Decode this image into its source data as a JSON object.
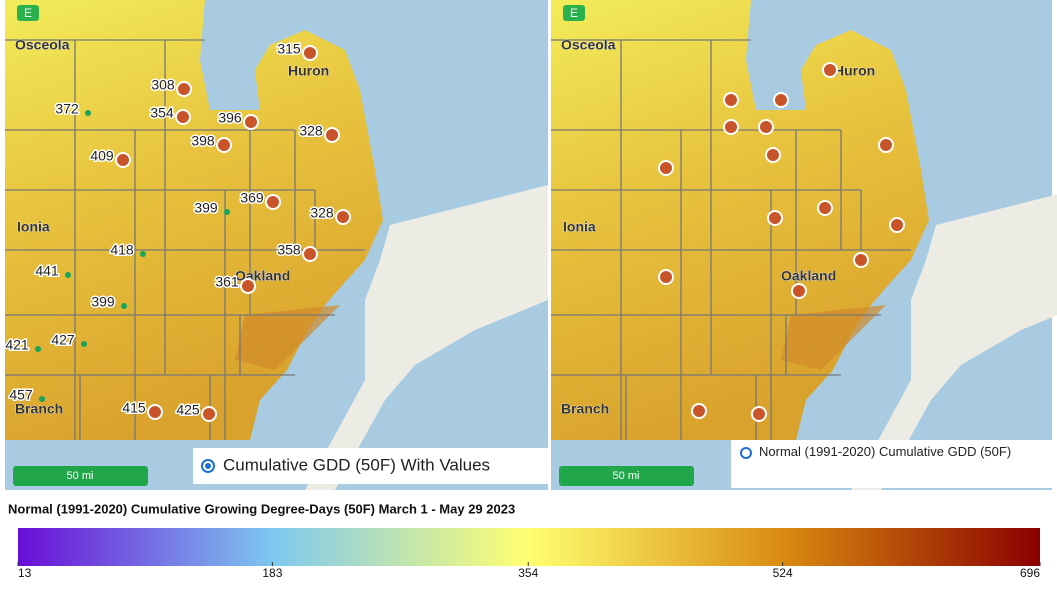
{
  "left_map": {
    "layer_button": "E",
    "county_labels": [
      "Osceola",
      "Huron",
      "Ionia",
      "Oakland",
      "Branch"
    ],
    "station_values": [
      315,
      308,
      372,
      354,
      396,
      328,
      409,
      398,
      369,
      399,
      328,
      358,
      418,
      441,
      361,
      399,
      427,
      421,
      457,
      415,
      425
    ],
    "scale": "50 mi",
    "legend": "Cumulative GDD (50F) With Values"
  },
  "right_map": {
    "layer_button": "E",
    "county_labels": [
      "Osceola",
      "Huron",
      "Ionia",
      "Oakland",
      "Branch"
    ],
    "scale": "50 mi",
    "legend": "Normal (1991-2020) Cumulative GDD (50F)"
  },
  "colorbar": {
    "title": "Normal (1991-2020) Cumulative Growing Degree-Days (50F) March 1 - May 29 2023",
    "ticks": [
      13,
      183,
      354,
      524,
      696
    ]
  }
}
